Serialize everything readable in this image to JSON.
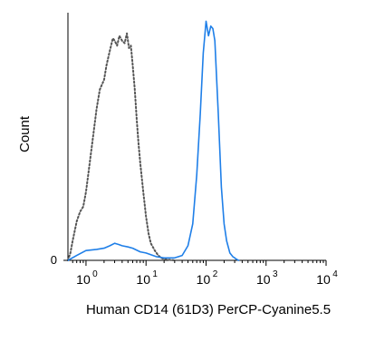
{
  "chart_data": {
    "type": "line",
    "xlabel": "Human CD14 (61D3) PerCP-Cyanine5.5",
    "ylabel": "Count",
    "x_scale": "log",
    "xlim": [
      0.5,
      10000
    ],
    "ylim": [
      0,
      100
    ],
    "x_ticks": [
      {
        "value": 1,
        "base": "10",
        "exp": "0"
      },
      {
        "value": 10,
        "base": "10",
        "exp": "1"
      },
      {
        "value": 100,
        "base": "10",
        "exp": "2"
      },
      {
        "value": 1000,
        "base": "10",
        "exp": "3"
      },
      {
        "value": 10000,
        "base": "10",
        "exp": "4"
      }
    ],
    "y_ticks": [
      {
        "value": 0,
        "label": "0"
      }
    ],
    "grid": false,
    "series": [
      {
        "style": "dotted",
        "color": "#555555",
        "x": [
          0.5,
          0.55,
          0.6,
          0.7,
          0.8,
          0.9,
          1.0,
          1.1,
          1.3,
          1.5,
          1.7,
          2.0,
          2.2,
          2.5,
          2.8,
          3.0,
          3.3,
          3.6,
          4.0,
          4.4,
          4.8,
          5.2,
          5.6,
          6.0,
          6.5,
          7.0,
          7.5,
          8.0,
          9.0,
          10,
          11,
          12,
          14,
          16,
          18,
          20,
          25,
          30
        ],
        "y": [
          0,
          3,
          8,
          16,
          20,
          22,
          28,
          36,
          50,
          62,
          70,
          74,
          80,
          86,
          91,
          90,
          88,
          92,
          90,
          89,
          93,
          87,
          88,
          80,
          70,
          58,
          48,
          40,
          28,
          18,
          11,
          7,
          4,
          2,
          1,
          0.5,
          0.2,
          0
        ]
      },
      {
        "style": "solid",
        "color": "#1f7fe8",
        "x": [
          0.5,
          0.7,
          1.0,
          1.5,
          2.0,
          2.5,
          3.0,
          3.5,
          4.0,
          5.0,
          6.0,
          8.0,
          10,
          15,
          20,
          30,
          40,
          50,
          60,
          70,
          80,
          90,
          100,
          110,
          120,
          130,
          140,
          150,
          160,
          170,
          180,
          200,
          220,
          250,
          280,
          300,
          320,
          350
        ],
        "y": [
          0,
          2,
          4,
          4.5,
          5,
          6,
          7,
          6.5,
          6,
          5.5,
          5,
          3.5,
          3,
          1.5,
          1,
          1,
          2,
          6,
          15,
          35,
          60,
          85,
          98,
          92,
          96,
          95,
          90,
          75,
          60,
          45,
          30,
          15,
          8,
          3,
          1.5,
          1,
          0.5,
          0
        ]
      }
    ]
  }
}
